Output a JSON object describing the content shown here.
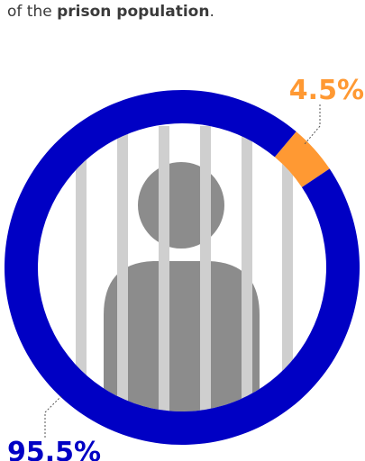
{
  "chart_data": {
    "type": "pie",
    "title_parts": [
      "of the ",
      "prison population",
      "."
    ],
    "categories": [
      null,
      null
    ],
    "values": [
      4.5,
      95.5
    ],
    "value_labels": [
      "4.5%",
      "95.5%"
    ],
    "colors": [
      "#ff9933",
      "#0000c4"
    ],
    "donut": true
  }
}
